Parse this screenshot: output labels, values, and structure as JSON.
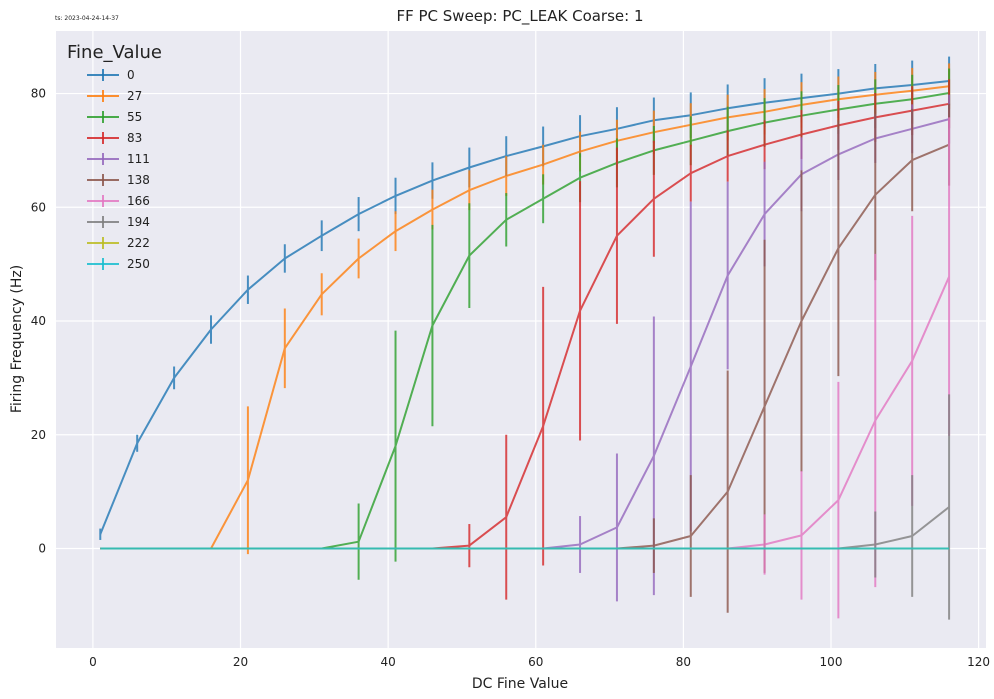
{
  "timestamp": "ts: 2023-04-24-14-37",
  "chart_data": {
    "type": "line",
    "title": "FF PC Sweep: PC_LEAK Coarse: 1",
    "xlabel": "DC Fine Value",
    "ylabel": "Firing Frequency (Hz)",
    "xlim": [
      -5,
      121
    ],
    "ylim": [
      -17.5,
      91
    ],
    "xticks": [
      0,
      20,
      40,
      60,
      80,
      100,
      120
    ],
    "yticks": [
      0,
      20,
      40,
      60,
      80
    ],
    "grid": true,
    "legend": {
      "title": "Fine_Value",
      "placement": "top-left"
    },
    "x": [
      1,
      6,
      11,
      16,
      21,
      26,
      31,
      36,
      41,
      46,
      51,
      56,
      61,
      66,
      71,
      76,
      81,
      86,
      91,
      96,
      101,
      106,
      111,
      116
    ],
    "series": [
      {
        "name": "0",
        "color": "#1f77b4",
        "values": [
          2.5,
          18.5,
          30,
          38.5,
          45.5,
          51,
          55,
          58.8,
          62,
          64.7,
          67,
          69,
          70.7,
          72.5,
          73.8,
          75.3,
          76.2,
          77.4,
          78.4,
          79.2,
          80,
          80.9,
          81.5,
          82.2
        ],
        "errors": [
          1,
          1.5,
          2,
          2.5,
          2.5,
          2.5,
          2.7,
          3,
          3.2,
          3.2,
          3.5,
          3.5,
          3.5,
          3.7,
          3.8,
          4,
          4,
          4.2,
          4.3,
          4.3,
          4.3,
          4.3,
          4.3,
          4.3
        ]
      },
      {
        "name": "27",
        "color": "#ff7f0e",
        "values": [
          0,
          0,
          0,
          0,
          12,
          35.2,
          44.7,
          51,
          55.8,
          59.6,
          63,
          65.5,
          67.5,
          69.8,
          71.7,
          73.2,
          74.5,
          75.8,
          76.8,
          78,
          79,
          79.8,
          80.5,
          81.3
        ],
        "errors": [
          0,
          0,
          0,
          0,
          13,
          7,
          3.7,
          3.5,
          3.5,
          3.5,
          3.5,
          3.5,
          3.5,
          3.5,
          3.7,
          3.8,
          3.8,
          4,
          4,
          4,
          4,
          4,
          4,
          4
        ]
      },
      {
        "name": "55",
        "color": "#2ca02c",
        "values": [
          0,
          0,
          0,
          0,
          0,
          0,
          0,
          1.2,
          18,
          39.2,
          51.5,
          57.8,
          61.5,
          65.2,
          67.8,
          70,
          71.7,
          73.4,
          74.9,
          76.1,
          77.2,
          78.2,
          79,
          80.1
        ],
        "errors": [
          0,
          0,
          0,
          0,
          0,
          0,
          0,
          6.7,
          20.3,
          17.7,
          9.2,
          4.7,
          4.3,
          4.3,
          4.3,
          4.3,
          4.3,
          4.3,
          4.3,
          4.3,
          4.3,
          4.3,
          4.3,
          4.3
        ]
      },
      {
        "name": "83",
        "color": "#d62728",
        "values": [
          0,
          0,
          0,
          0,
          0,
          0,
          0,
          0,
          0,
          0,
          0.5,
          5.5,
          21.5,
          41.8,
          55,
          61.5,
          66,
          69,
          71,
          72.8,
          74.4,
          75.8,
          77,
          78.2
        ],
        "errors": [
          0,
          0,
          0,
          0,
          0,
          0,
          0,
          0,
          0,
          0,
          3.8,
          14.5,
          24.5,
          22.8,
          15.5,
          10.2,
          5,
          4.5,
          4.3,
          4.3,
          4.3,
          4.3,
          4.3,
          4.3
        ]
      },
      {
        "name": "111",
        "color": "#9467bd",
        "values": [
          0,
          0,
          0,
          0,
          0,
          0,
          0,
          0,
          0,
          0,
          0,
          0,
          0,
          0.7,
          3.7,
          16.3,
          32,
          48,
          58.8,
          65.8,
          69.3,
          72.1,
          73.8,
          75.5
        ],
        "errors": [
          0,
          0,
          0,
          0,
          0,
          0,
          0,
          0,
          0,
          0,
          0,
          0,
          0,
          5,
          13,
          24.5,
          29,
          16.5,
          9.2,
          6.5,
          4.5,
          4.3,
          4.3,
          4.3
        ]
      },
      {
        "name": "138",
        "color": "#8c564b",
        "values": [
          0,
          0,
          0,
          0,
          0,
          0,
          0,
          0,
          0,
          0,
          0,
          0,
          0,
          0,
          0,
          0.5,
          2.2,
          10,
          25,
          40,
          52.8,
          62.2,
          68.3,
          71
        ],
        "errors": [
          0,
          0,
          0,
          0,
          0,
          0,
          0,
          0,
          0,
          0,
          0,
          0,
          0,
          0,
          0,
          4.8,
          10.7,
          21.3,
          29.3,
          26.5,
          22.5,
          15,
          9,
          7.2
        ]
      },
      {
        "name": "166",
        "color": "#e377c2",
        "values": [
          0,
          0,
          0,
          0,
          0,
          0,
          0,
          0,
          0,
          0,
          0,
          0,
          0,
          0,
          0,
          0,
          0,
          0,
          0.7,
          2.3,
          8.5,
          22.5,
          33,
          47.8
        ],
        "errors": [
          0,
          0,
          0,
          0,
          0,
          0,
          0,
          0,
          0,
          0,
          0,
          0,
          0,
          0,
          0,
          0,
          0,
          0,
          5.3,
          11.3,
          20.8,
          29.3,
          25.5,
          28
        ]
      },
      {
        "name": "194",
        "color": "#7f7f7f",
        "values": [
          0,
          0,
          0,
          0,
          0,
          0,
          0,
          0,
          0,
          0,
          0,
          0,
          0,
          0,
          0,
          0,
          0,
          0,
          0,
          0,
          0,
          0.7,
          2.2,
          7.3
        ],
        "errors": [
          0,
          0,
          0,
          0,
          0,
          0,
          0,
          0,
          0,
          0,
          0,
          0,
          0,
          0,
          0,
          0,
          0,
          0,
          0,
          0,
          0,
          5.8,
          10.7,
          19.8
        ]
      },
      {
        "name": "222",
        "color": "#bcbd22",
        "values": [
          0,
          0,
          0,
          0,
          0,
          0,
          0,
          0,
          0,
          0,
          0,
          0,
          0,
          0,
          0,
          0,
          0,
          0,
          0,
          0,
          0,
          0,
          0,
          0
        ],
        "errors": [
          0,
          0,
          0,
          0,
          0,
          0,
          0,
          0,
          0,
          0,
          0,
          0,
          0,
          0,
          0,
          0,
          0,
          0,
          0,
          0,
          0,
          0,
          0,
          0
        ]
      },
      {
        "name": "250",
        "color": "#17becf",
        "values": [
          0,
          0,
          0,
          0,
          0,
          0,
          0,
          0,
          0,
          0,
          0,
          0,
          0,
          0,
          0,
          0,
          0,
          0,
          0,
          0,
          0,
          0,
          0,
          0
        ],
        "errors": [
          0,
          0,
          0,
          0,
          0,
          0,
          0,
          0,
          0,
          0,
          0,
          0,
          0,
          0,
          0,
          0,
          0,
          0,
          0,
          0,
          0,
          0,
          0,
          0
        ]
      }
    ]
  }
}
